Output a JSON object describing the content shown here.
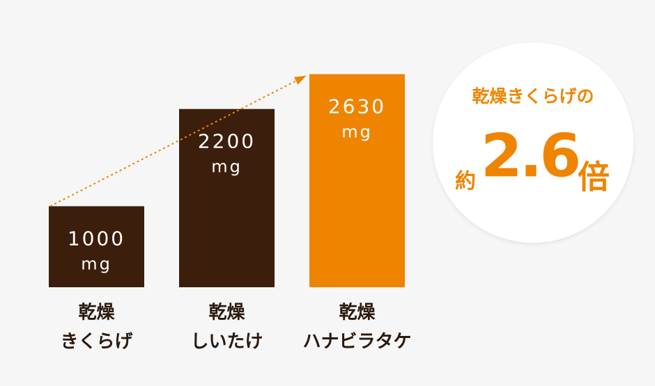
{
  "chart_data": {
    "type": "bar",
    "categories": [
      [
        "乾燥",
        "きくらげ"
      ],
      [
        "乾燥",
        "しいたけ"
      ],
      [
        "乾燥",
        "ハナビラタケ"
      ]
    ],
    "values": [
      1000,
      2200,
      2630
    ],
    "unit": "mg",
    "colors": [
      "#3b1f0c",
      "#3b1f0c",
      "#ef8400"
    ],
    "arrow_color": "#ef8400",
    "callout": {
      "line1": "乾燥きくらげの",
      "prefix": "約",
      "value": 2.6,
      "suffix": "倍",
      "color": "#ef8400"
    }
  }
}
